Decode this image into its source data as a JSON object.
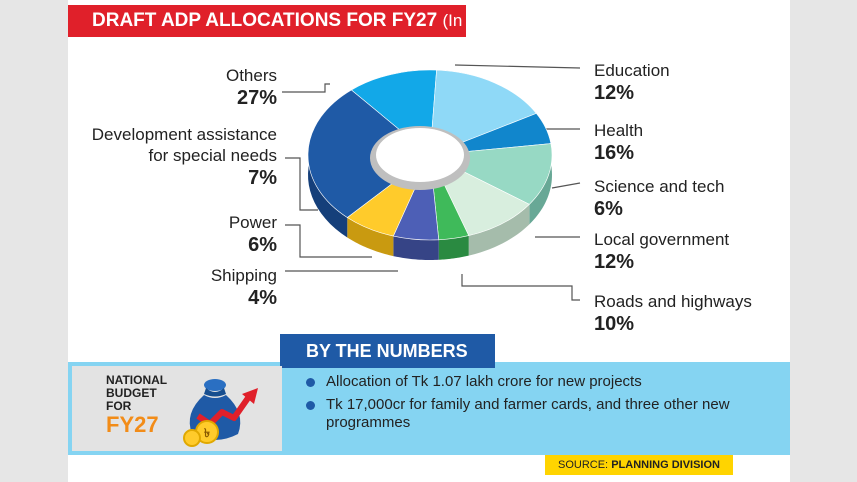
{
  "title": "DRAFT ADP ALLOCATIONS FOR FY27",
  "title_unit": "(In %)",
  "chart_data": {
    "type": "pie",
    "title": "DRAFT ADP ALLOCATIONS FOR FY27",
    "subtitle": "(In %)",
    "slices": [
      {
        "label": "Education",
        "value": 12,
        "display": "12%",
        "color": "#12a8e8",
        "side_color": "#0c7db0"
      },
      {
        "label": "Health",
        "value": 16,
        "display": "16%",
        "color": "#8fd9f7",
        "side_color": "#60abc9"
      },
      {
        "label": "Science and tech",
        "value": 6,
        "display": "6%",
        "color": "#1186cc",
        "side_color": "#0c5f93"
      },
      {
        "label": "Local government",
        "value": 12,
        "display": "12%",
        "color": "#97d9c4",
        "side_color": "#68a896"
      },
      {
        "label": "Roads and highways",
        "value": 10,
        "display": "10%",
        "color": "#d8eede",
        "side_color": "#a5bcab"
      },
      {
        "label": "Shipping",
        "value": 4,
        "display": "4%",
        "color": "#3fba5a",
        "side_color": "#2a8a41"
      },
      {
        "label": "Power",
        "value": 6,
        "display": "6%",
        "color": "#4d5fb6",
        "side_color": "#364486"
      },
      {
        "label": "Development assistance for special needs",
        "value": 7,
        "display": "7%",
        "color": "#ffcb2b",
        "side_color": "#c99a10"
      },
      {
        "label": "Others",
        "value": 27,
        "display": "27%",
        "color": "#1f5aa6",
        "side_color": "#153f7a"
      }
    ]
  },
  "labels": {
    "education": {
      "name": "Education",
      "pct": "12%"
    },
    "health": {
      "name": "Health",
      "pct": "16%"
    },
    "science": {
      "name": "Science and tech",
      "pct": "6%"
    },
    "localgov": {
      "name": "Local government",
      "pct": "12%"
    },
    "roads": {
      "name": "Roads and highways",
      "pct": "10%"
    },
    "shipping": {
      "name": "Shipping",
      "pct": "4%"
    },
    "power": {
      "name": "Power",
      "pct": "6%"
    },
    "devassist": {
      "line1": "Development assistance",
      "line2": "for special needs",
      "pct": "7%"
    },
    "others": {
      "name": "Others",
      "pct": "27%"
    }
  },
  "by_the_numbers": {
    "heading": "BY THE NUMBERS",
    "card": {
      "line1": "NATIONAL",
      "line2": "BUDGET",
      "line3": "FOR",
      "line4": "FY27"
    },
    "bullets": [
      "Allocation of Tk 1.07 lakh crore for new projects",
      "Tk 17,000cr for family and farmer cards, and three other new programmes"
    ]
  },
  "source": {
    "prefix": "SOURCE:",
    "name": "PLANNING DIVISION"
  },
  "icons": {
    "money_bag": "money-bag-icon",
    "growth_arrow": "growth-arrow-icon",
    "coin": "taka-coin-icon"
  },
  "colors": {
    "title_red": "#e0202a",
    "accent_blue": "#1f5aa6",
    "light_blue": "#85d4f2",
    "source_yellow": "#ffd400",
    "fy_orange": "#f28c18"
  }
}
